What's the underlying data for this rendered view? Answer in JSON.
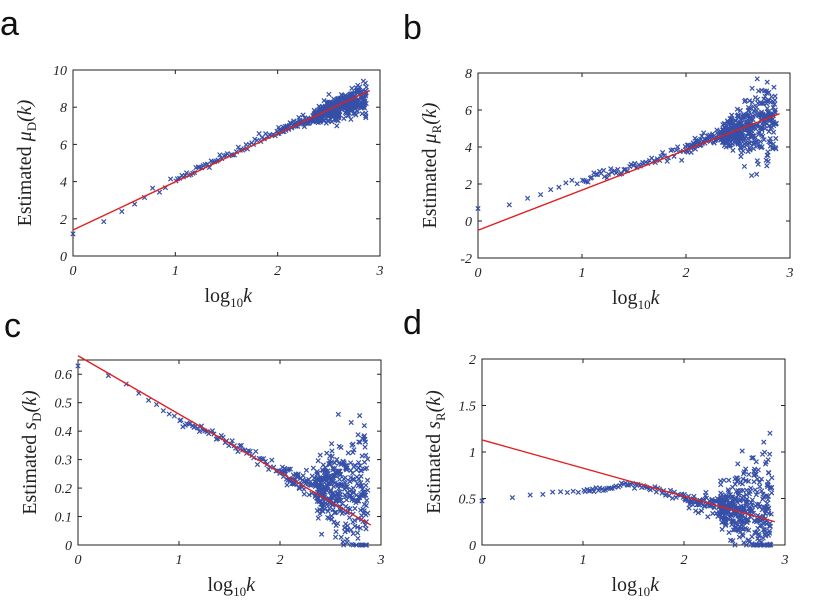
{
  "colors": {
    "points": "#3650a8",
    "fit": "#e02020",
    "axis": "#222222"
  },
  "chart_data": [
    {
      "id": "a",
      "type": "scatter",
      "panel_label": "a",
      "xlabel": {
        "main": "log",
        "sub": "10",
        "var": "k"
      },
      "ylabel": {
        "pre": "Estimated ",
        "sym": "μ",
        "sub": "D",
        "post": "(k)"
      },
      "xlim": [
        0,
        3
      ],
      "ylim": [
        0,
        10
      ],
      "xticks": [
        0,
        1,
        2,
        3
      ],
      "xtick_labels": [
        "0",
        "1",
        "2",
        "3"
      ],
      "yticks": [
        0,
        2,
        4,
        6,
        8,
        10
      ],
      "ytick_labels": [
        "0",
        "2",
        "4",
        "6",
        "8",
        "10"
      ],
      "fit_line": {
        "x": [
          0,
          2.9
        ],
        "y": [
          1.4,
          8.9
        ]
      },
      "trend": {
        "x": [
          0,
          0.3,
          0.48,
          0.6,
          0.9,
          1.2,
          1.5,
          1.8,
          2.1,
          2.4,
          2.6,
          2.75,
          2.87
        ],
        "y": [
          1.0,
          1.95,
          2.55,
          2.9,
          3.85,
          4.65,
          5.35,
          6.2,
          6.9,
          7.55,
          8.0,
          8.3,
          8.5
        ]
      },
      "scatter_spread": [
        [
          0,
          0.1
        ],
        [
          2.3,
          0.12
        ],
        [
          2.6,
          0.3
        ],
        [
          2.87,
          0.45
        ]
      ]
    },
    {
      "id": "b",
      "type": "scatter",
      "panel_label": "b",
      "xlabel": {
        "main": "log",
        "sub": "10",
        "var": "k"
      },
      "ylabel": {
        "pre": "Estimated ",
        "sym": "μ",
        "sub": "R",
        "post": "(k)"
      },
      "xlim": [
        0,
        3
      ],
      "ylim": [
        -2,
        8
      ],
      "xticks": [
        0,
        1,
        2,
        3
      ],
      "xtick_labels": [
        "0",
        "1",
        "2",
        "3"
      ],
      "yticks": [
        -2,
        0,
        2,
        4,
        6,
        8
      ],
      "ytick_labels": [
        "-2",
        "0",
        "2",
        "4",
        "6",
        "8"
      ],
      "fit_line": {
        "x": [
          0,
          2.9
        ],
        "y": [
          -0.5,
          5.8
        ]
      },
      "trend": {
        "x": [
          0,
          0.3,
          0.6,
          0.9,
          1.2,
          1.4,
          1.6,
          1.9,
          2.2,
          2.5,
          2.7,
          2.87
        ],
        "y": [
          0.6,
          0.9,
          1.55,
          2.15,
          2.55,
          2.75,
          3.1,
          3.75,
          4.35,
          4.9,
          5.25,
          5.55
        ]
      },
      "scatter_spread": [
        [
          0,
          0.1
        ],
        [
          2.2,
          0.15
        ],
        [
          2.5,
          0.5
        ],
        [
          2.65,
          1.0
        ],
        [
          2.87,
          1.2
        ]
      ]
    },
    {
      "id": "c",
      "type": "scatter",
      "panel_label": "c",
      "xlabel": {
        "main": "log",
        "sub": "10",
        "var": "k"
      },
      "ylabel": {
        "pre": "Estimated ",
        "sym": "s",
        "sub": "D",
        "post": "(k)"
      },
      "xlim": [
        0,
        3
      ],
      "ylim": [
        0,
        0.65
      ],
      "xticks": [
        0,
        1,
        2,
        3
      ],
      "xtick_labels": [
        "0",
        "1",
        "2",
        "3"
      ],
      "yticks": [
        0,
        0.1,
        0.2,
        0.3,
        0.4,
        0.5,
        0.6
      ],
      "ytick_labels": [
        "0",
        "0.1",
        "0.2",
        "0.3",
        "0.4",
        "0.5",
        "0.6"
      ],
      "fit_line": {
        "x": [
          0,
          2.9
        ],
        "y": [
          0.665,
          0.07
        ]
      },
      "trend": {
        "x": [
          0,
          0.3,
          0.6,
          0.9,
          1.2,
          1.5,
          1.8,
          2.1,
          2.4,
          2.6,
          2.75,
          2.87
        ],
        "y": [
          0.63,
          0.59,
          0.53,
          0.46,
          0.41,
          0.36,
          0.3,
          0.24,
          0.2,
          0.19,
          0.17,
          0.15
        ]
      },
      "scatter_spread": [
        [
          0,
          0.003
        ],
        [
          2.0,
          0.01
        ],
        [
          2.3,
          0.03
        ],
        [
          2.6,
          0.08
        ],
        [
          2.87,
          0.14
        ]
      ]
    },
    {
      "id": "d",
      "type": "scatter",
      "panel_label": "d",
      "xlabel": {
        "main": "log",
        "sub": "10",
        "var": "k"
      },
      "ylabel": {
        "pre": "Estimated ",
        "sym": "s",
        "sub": "R",
        "post": "(k)"
      },
      "xlim": [
        0,
        3
      ],
      "ylim": [
        0,
        2
      ],
      "xticks": [
        0,
        1,
        2,
        3
      ],
      "xtick_labels": [
        "0",
        "1",
        "2",
        "3"
      ],
      "yticks": [
        0,
        0.5,
        1,
        1.5,
        2
      ],
      "ytick_labels": [
        "0",
        "0.5",
        "1",
        "1.5",
        "2"
      ],
      "fit_line": {
        "x": [
          0,
          2.9
        ],
        "y": [
          1.13,
          0.25
        ]
      },
      "trend": {
        "x": [
          0,
          0.3,
          0.6,
          0.9,
          1.2,
          1.45,
          1.6,
          1.9,
          2.2,
          2.5,
          2.7,
          2.87
        ],
        "y": [
          0.48,
          0.52,
          0.55,
          0.57,
          0.6,
          0.66,
          0.64,
          0.52,
          0.45,
          0.38,
          0.35,
          0.32
        ]
      },
      "scatter_spread": [
        [
          0,
          0.005
        ],
        [
          1.9,
          0.02
        ],
        [
          2.3,
          0.06
        ],
        [
          2.55,
          0.2
        ],
        [
          2.87,
          0.4
        ]
      ]
    }
  ]
}
